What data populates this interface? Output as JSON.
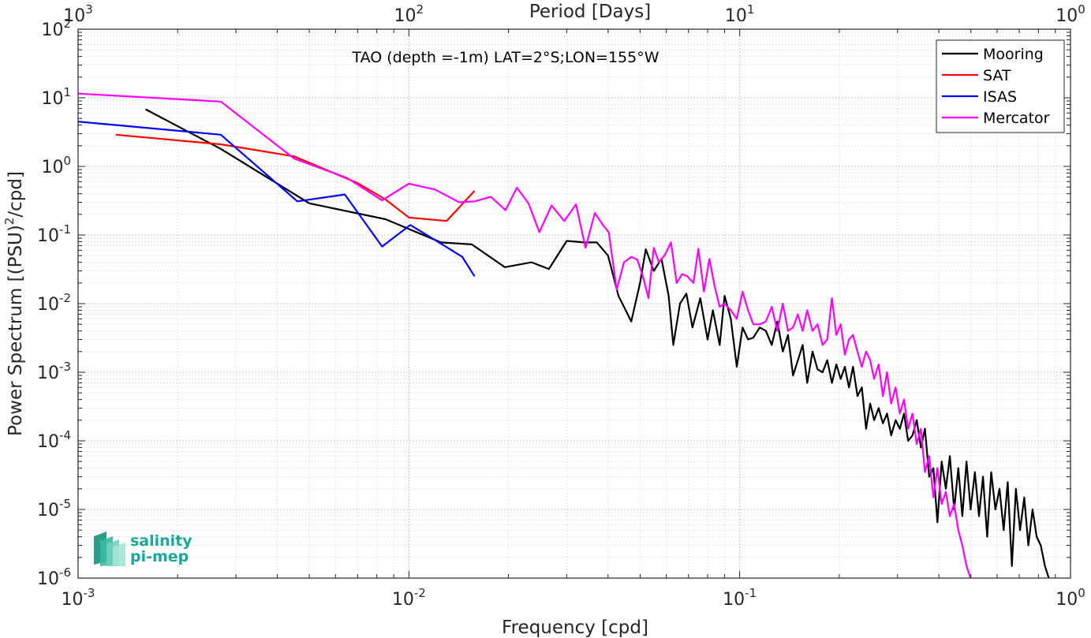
{
  "chart_data": {
    "type": "line",
    "annotation": "TAO (depth =-1m) LAT=2°S;LON=155°W",
    "xlabel": "Frequency [cpd]",
    "ylabel": "Power Spectrum [(PSU)",
    "ylabel_sup": "2",
    "ylabel_tail": "/cpd]",
    "top_xlabel": "Period [Days]",
    "x_scale": "log",
    "y_scale": "log",
    "xlim": [
      0.001,
      1
    ],
    "ylim": [
      1e-06,
      100
    ],
    "grid": true,
    "legend_position": "top-right",
    "x_ticks": [
      {
        "base": "10",
        "exp": "-3"
      },
      {
        "base": "10",
        "exp": "-2"
      },
      {
        "base": "10",
        "exp": "-1"
      },
      {
        "base": "10",
        "exp": "0"
      }
    ],
    "top_ticks": [
      {
        "base": "10",
        "exp": "3"
      },
      {
        "base": "10",
        "exp": "2"
      },
      {
        "base": "10",
        "exp": "1"
      },
      {
        "base": "10",
        "exp": "0"
      }
    ],
    "y_ticks": [
      {
        "base": "10",
        "exp": "2"
      },
      {
        "base": "10",
        "exp": "1"
      },
      {
        "base": "10",
        "exp": "0"
      },
      {
        "base": "10",
        "exp": "-1"
      },
      {
        "base": "10",
        "exp": "-2"
      },
      {
        "base": "10",
        "exp": "-3"
      },
      {
        "base": "10",
        "exp": "-4"
      },
      {
        "base": "10",
        "exp": "-5"
      },
      {
        "base": "10",
        "exp": "-6"
      }
    ],
    "series": [
      {
        "name": "Mooring",
        "color": "#000000",
        "points": [
          [
            0.0016,
            6.8
          ],
          [
            0.0027,
            1.8
          ],
          [
            0.005,
            0.29
          ],
          [
            0.0085,
            0.17
          ],
          [
            0.0125,
            0.078
          ],
          [
            0.0155,
            0.073
          ],
          [
            0.0195,
            0.034
          ],
          [
            0.0235,
            0.04
          ],
          [
            0.0265,
            0.032
          ],
          [
            0.03,
            0.082
          ],
          [
            0.034,
            0.078
          ],
          [
            0.037,
            0.078
          ],
          [
            0.04,
            0.05
          ],
          [
            0.043,
            0.013
          ],
          [
            0.047,
            0.0055
          ],
          [
            0.05,
            0.02
          ],
          [
            0.052,
            0.062
          ],
          [
            0.055,
            0.03
          ],
          [
            0.058,
            0.045
          ],
          [
            0.061,
            0.013
          ],
          [
            0.063,
            0.0025
          ],
          [
            0.066,
            0.01
          ],
          [
            0.069,
            0.014
          ],
          [
            0.072,
            0.0045
          ],
          [
            0.076,
            0.012
          ],
          [
            0.08,
            0.003
          ],
          [
            0.083,
            0.008
          ],
          [
            0.087,
            0.0025
          ],
          [
            0.09,
            0.013
          ],
          [
            0.094,
            0.006
          ],
          [
            0.098,
            0.0012
          ],
          [
            0.102,
            0.0045
          ],
          [
            0.106,
            0.003
          ],
          [
            0.11,
            0.0032
          ],
          [
            0.115,
            0.0045
          ],
          [
            0.12,
            0.004
          ],
          [
            0.125,
            0.0025
          ],
          [
            0.13,
            0.0055
          ],
          [
            0.135,
            0.002
          ],
          [
            0.14,
            0.0035
          ],
          [
            0.145,
            0.0009
          ],
          [
            0.15,
            0.0015
          ],
          [
            0.155,
            0.0025
          ],
          [
            0.16,
            0.0007
          ],
          [
            0.166,
            0.002
          ],
          [
            0.172,
            0.0011
          ],
          [
            0.178,
            0.001
          ],
          [
            0.184,
            0.0015
          ],
          [
            0.19,
            0.0007
          ],
          [
            0.196,
            0.0013
          ],
          [
            0.202,
            0.0008
          ],
          [
            0.208,
            0.0012
          ],
          [
            0.214,
            0.0006
          ],
          [
            0.22,
            0.0012
          ],
          [
            0.227,
            0.00045
          ],
          [
            0.234,
            0.0006
          ],
          [
            0.241,
            0.00015
          ],
          [
            0.248,
            0.00035
          ],
          [
            0.255,
            0.0002
          ],
          [
            0.263,
            0.0003
          ],
          [
            0.271,
            0.00018
          ],
          [
            0.279,
            0.00025
          ],
          [
            0.287,
            0.00012
          ],
          [
            0.296,
            0.0002
          ],
          [
            0.305,
            0.00015
          ],
          [
            0.314,
            0.00025
          ],
          [
            0.323,
            0.0001
          ],
          [
            0.333,
            0.00012
          ],
          [
            0.343,
            0.0002
          ],
          [
            0.353,
            8e-05
          ],
          [
            0.363,
            0.00015
          ],
          [
            0.374,
            3e-05
          ],
          [
            0.385,
            4e-05
          ],
          [
            0.396,
            6.5e-06
          ],
          [
            0.408,
            5e-05
          ],
          [
            0.42,
            2e-05
          ],
          [
            0.432,
            6e-05
          ],
          [
            0.445,
            1e-05
          ],
          [
            0.458,
            4e-05
          ],
          [
            0.471,
            8e-06
          ],
          [
            0.485,
            5e-05
          ],
          [
            0.499,
            1e-05
          ],
          [
            0.514,
            3.5e-05
          ],
          [
            0.529,
            8e-06
          ],
          [
            0.544,
            3e-05
          ],
          [
            0.56,
            4e-06
          ],
          [
            0.576,
            3.5e-05
          ],
          [
            0.593,
            1e-05
          ],
          [
            0.61,
            2e-05
          ],
          [
            0.628,
            5e-06
          ],
          [
            0.646,
            2.5e-05
          ],
          [
            0.665,
            1.5e-06
          ],
          [
            0.684,
            2e-05
          ],
          [
            0.704,
            5e-06
          ],
          [
            0.725,
            1.5e-05
          ],
          [
            0.746,
            3e-06
          ],
          [
            0.768,
            1e-05
          ],
          [
            0.79,
            4e-06
          ],
          [
            0.813,
            3e-06
          ],
          [
            0.837,
            1.5e-06
          ],
          [
            0.86,
            1e-06
          ]
        ]
      },
      {
        "name": "SAT",
        "color": "#ff0000",
        "points": [
          [
            0.0013,
            2.9
          ],
          [
            0.0027,
            2.1
          ],
          [
            0.0045,
            1.4
          ],
          [
            0.007,
            0.57
          ],
          [
            0.0085,
            0.33
          ],
          [
            0.01,
            0.18
          ],
          [
            0.013,
            0.16
          ],
          [
            0.0158,
            0.44
          ]
        ]
      },
      {
        "name": "ISAS",
        "color": "#0000ff",
        "points": [
          [
            0.001,
            4.5
          ],
          [
            0.0027,
            2.9
          ],
          [
            0.0046,
            0.31
          ],
          [
            0.0064,
            0.39
          ],
          [
            0.0083,
            0.068
          ],
          [
            0.0101,
            0.14
          ],
          [
            0.0125,
            0.075
          ],
          [
            0.0145,
            0.048
          ],
          [
            0.0158,
            0.025
          ]
        ]
      },
      {
        "name": "Mercator",
        "color": "#ff00ff",
        "points": [
          [
            0.001,
            11.5
          ],
          [
            0.0027,
            8.8
          ],
          [
            0.0045,
            1.3
          ],
          [
            0.0065,
            0.68
          ],
          [
            0.0083,
            0.32
          ],
          [
            0.01,
            0.56
          ],
          [
            0.012,
            0.46
          ],
          [
            0.0142,
            0.3
          ],
          [
            0.0158,
            0.31
          ],
          [
            0.0177,
            0.36
          ],
          [
            0.0196,
            0.23
          ],
          [
            0.0212,
            0.49
          ],
          [
            0.023,
            0.29
          ],
          [
            0.0248,
            0.11
          ],
          [
            0.027,
            0.27
          ],
          [
            0.0295,
            0.16
          ],
          [
            0.032,
            0.28
          ],
          [
            0.0342,
            0.065
          ],
          [
            0.0365,
            0.21
          ],
          [
            0.0386,
            0.14
          ],
          [
            0.0402,
            0.11
          ],
          [
            0.0425,
            0.016
          ],
          [
            0.0447,
            0.04
          ],
          [
            0.047,
            0.048
          ],
          [
            0.049,
            0.044
          ],
          [
            0.051,
            0.025
          ],
          [
            0.053,
            0.012
          ],
          [
            0.055,
            0.065
          ],
          [
            0.057,
            0.04
          ],
          [
            0.0595,
            0.052
          ],
          [
            0.062,
            0.078
          ],
          [
            0.0645,
            0.02
          ],
          [
            0.067,
            0.027
          ],
          [
            0.0695,
            0.025
          ],
          [
            0.0725,
            0.02
          ],
          [
            0.075,
            0.063
          ],
          [
            0.078,
            0.015
          ],
          [
            0.081,
            0.045
          ],
          [
            0.084,
            0.018
          ],
          [
            0.087,
            0.009
          ],
          [
            0.09,
            0.01
          ],
          [
            0.094,
            0.008
          ],
          [
            0.098,
            0.006
          ],
          [
            0.102,
            0.015
          ],
          [
            0.106,
            0.008
          ],
          [
            0.11,
            0.005
          ],
          [
            0.115,
            0.005
          ],
          [
            0.12,
            0.0055
          ],
          [
            0.125,
            0.009
          ],
          [
            0.13,
            0.004
          ],
          [
            0.135,
            0.01
          ],
          [
            0.14,
            0.004
          ],
          [
            0.145,
            0.0045
          ],
          [
            0.15,
            0.007
          ],
          [
            0.155,
            0.004
          ],
          [
            0.16,
            0.008
          ],
          [
            0.166,
            0.004
          ],
          [
            0.172,
            0.005
          ],
          [
            0.178,
            0.0025
          ],
          [
            0.184,
            0.003
          ],
          [
            0.19,
            0.012
          ],
          [
            0.196,
            0.0035
          ],
          [
            0.202,
            0.005
          ],
          [
            0.208,
            0.0018
          ],
          [
            0.214,
            0.003
          ],
          [
            0.22,
            0.0035
          ],
          [
            0.227,
            0.002
          ],
          [
            0.234,
            0.0012
          ],
          [
            0.241,
            0.002
          ],
          [
            0.248,
            0.0015
          ],
          [
            0.255,
            0.0008
          ],
          [
            0.263,
            0.0013
          ],
          [
            0.271,
            0.00045
          ],
          [
            0.279,
            0.001
          ],
          [
            0.287,
            0.00035
          ],
          [
            0.296,
            0.0006
          ],
          [
            0.305,
            0.00025
          ],
          [
            0.314,
            0.0004
          ],
          [
            0.323,
            0.00015
          ],
          [
            0.333,
            0.00025
          ],
          [
            0.343,
            9e-05
          ],
          [
            0.353,
            0.00015
          ],
          [
            0.363,
            3.5e-05
          ],
          [
            0.374,
            6e-05
          ],
          [
            0.385,
            1.5e-05
          ],
          [
            0.396,
            4e-05
          ],
          [
            0.408,
            1.2e-05
          ],
          [
            0.42,
            1.8e-05
          ],
          [
            0.432,
            8e-06
          ],
          [
            0.445,
            1.2e-05
          ],
          [
            0.458,
            5e-06
          ],
          [
            0.471,
            3e-06
          ],
          [
            0.485,
            1.5e-06
          ],
          [
            0.499,
            1e-06
          ]
        ]
      }
    ]
  },
  "logo": {
    "line1": "salinity",
    "line2": "pi-mep",
    "color": "#18a898"
  }
}
